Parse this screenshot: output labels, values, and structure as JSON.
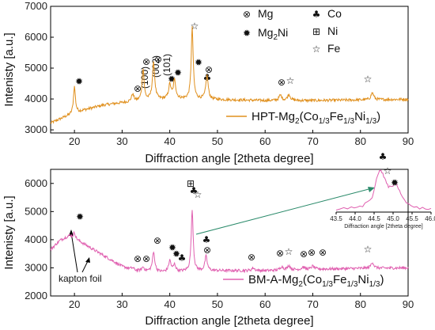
{
  "chart_data": [
    {
      "type": "line",
      "xlabel": "Diffraction angle [2theta degree]",
      "ylabel": "Intenisty [a.u.]",
      "xlim": [
        15,
        90
      ],
      "ylim": [
        2900,
        7000
      ],
      "x_ticks": [
        "20",
        "30",
        "40",
        "50",
        "60",
        "70",
        "80",
        "90"
      ],
      "y_ticks": [
        "3000",
        "4000",
        "5000",
        "6000",
        "7000"
      ],
      "series": [
        {
          "name": "HPT-Mg2(Co1/3Fe1/3Ni1/3)",
          "color": "#e0901e",
          "baseline": [
            [
              15,
              3220
            ],
            [
              18,
              3420
            ],
            [
              22,
              3640
            ],
            [
              26,
              3800
            ],
            [
              30,
              3880
            ],
            [
              34,
              3940
            ],
            [
              40,
              4000
            ],
            [
              50,
              3980
            ],
            [
              60,
              3950
            ],
            [
              70,
              3950
            ],
            [
              80,
              3970
            ],
            [
              90,
              3990
            ]
          ],
          "peaks": [
            [
              20.0,
              4400,
              0.25
            ],
            [
              32.2,
              4150,
              0.3
            ],
            [
              34.4,
              4980,
              0.25
            ],
            [
              36.6,
              5150,
              0.3
            ],
            [
              40.0,
              4450,
              0.3
            ],
            [
              41.0,
              4600,
              0.3
            ],
            [
              44.7,
              6300,
              0.25
            ],
            [
              47.8,
              4750,
              0.3
            ],
            [
              63.2,
              4120,
              0.35
            ],
            [
              65.0,
              4150,
              0.35
            ],
            [
              82.5,
              4200,
              0.35
            ]
          ]
        }
      ],
      "legend": {
        "label_main": "HPT-Mg",
        "sub_1": "2",
        "label_mid": "(Co",
        "sub_2": "1/3",
        "label_fe": "Fe",
        "sub_3": "1/3",
        "label_ni": "Ni",
        "sub_4": "1/3",
        "label_end": ")"
      },
      "key": [
        {
          "symbol": "⊗",
          "icon": "circled-times",
          "label": "Mg",
          "sub": ""
        },
        {
          "symbol": "✹",
          "icon": "gear-sun",
          "label": "Mg",
          "sub": "2",
          "suffix": "Ni"
        },
        {
          "symbol": "♣",
          "icon": "club",
          "label": "Co",
          "sub": ""
        },
        {
          "symbol": "⊞",
          "icon": "circled-plus-square",
          "label": "Ni",
          "sub": ""
        },
        {
          "symbol": "☆",
          "icon": "star-outline",
          "label": "Fe",
          "sub": ""
        }
      ],
      "annotations": [
        "(100)",
        "(002)",
        "(101)"
      ]
    },
    {
      "type": "line",
      "xlabel": "Diffraction angle [2theta degree]",
      "ylabel": "Intenisty [a.u.]",
      "xlim": [
        15,
        90
      ],
      "ylim": [
        2000,
        6500
      ],
      "x_ticks": [
        "20",
        "30",
        "40",
        "50",
        "60",
        "70",
        "80",
        "90"
      ],
      "y_ticks": [
        "2000",
        "3000",
        "4000",
        "5000",
        "6000"
      ],
      "series": [
        {
          "name": "BM-A-Mg2(Co1/3Fe1/3Ni1/3)",
          "color": "#e060b0",
          "baseline": [
            [
              15,
              3650
            ],
            [
              17,
              3980
            ],
            [
              19,
              4150
            ],
            [
              21,
              3950
            ],
            [
              24,
              3650
            ],
            [
              27,
              3350
            ],
            [
              30,
              3050
            ],
            [
              33,
              2900
            ],
            [
              38,
              2850
            ],
            [
              50,
              2900
            ],
            [
              60,
              2900
            ],
            [
              70,
              2950
            ],
            [
              80,
              2980
            ],
            [
              90,
              3000
            ]
          ],
          "peaks": [
            [
              20.0,
              4250,
              0.25
            ],
            [
              32.2,
              3000,
              0.3
            ],
            [
              34.4,
              3020,
              0.3
            ],
            [
              36.6,
              3550,
              0.3
            ],
            [
              40.0,
              3250,
              0.3
            ],
            [
              41.0,
              3100,
              0.3
            ],
            [
              44.7,
              5050,
              0.25
            ],
            [
              47.6,
              3400,
              0.3
            ],
            [
              57.5,
              3000,
              0.35
            ],
            [
              63.5,
              3050,
              0.35
            ],
            [
              65.0,
              3080,
              0.35
            ],
            [
              68.0,
              3030,
              0.35
            ],
            [
              70.0,
              3060,
              0.35
            ],
            [
              82.5,
              3200,
              0.35
            ]
          ]
        }
      ],
      "legend": {
        "label_main": "BM-A-Mg",
        "sub_1": "2",
        "label_mid": "(Co",
        "sub_2": "1/3",
        "label_fe": "Fe",
        "sub_3": "1/3",
        "label_ni": "Ni",
        "sub_4": "1/3",
        "label_end": ")"
      },
      "annotations": [
        "kapton foil"
      ],
      "inset": {
        "x_ticks": [
          "43.5",
          "44.0",
          "44.5",
          "45.0",
          "45.5",
          "46.0"
        ],
        "xlim": [
          43.5,
          46.0
        ],
        "xlabel": "Diffraction angle [2theta degree]",
        "curve": [
          [
            43.5,
            0.05
          ],
          [
            43.9,
            0.08
          ],
          [
            44.2,
            0.12
          ],
          [
            44.45,
            0.3
          ],
          [
            44.6,
            0.75
          ],
          [
            44.68,
            0.85
          ],
          [
            44.78,
            0.65
          ],
          [
            44.88,
            0.5
          ],
          [
            45.0,
            0.52
          ],
          [
            45.08,
            0.6
          ],
          [
            45.2,
            0.35
          ],
          [
            45.4,
            0.15
          ],
          [
            45.7,
            0.08
          ],
          [
            46.0,
            0.06
          ]
        ]
      }
    }
  ]
}
